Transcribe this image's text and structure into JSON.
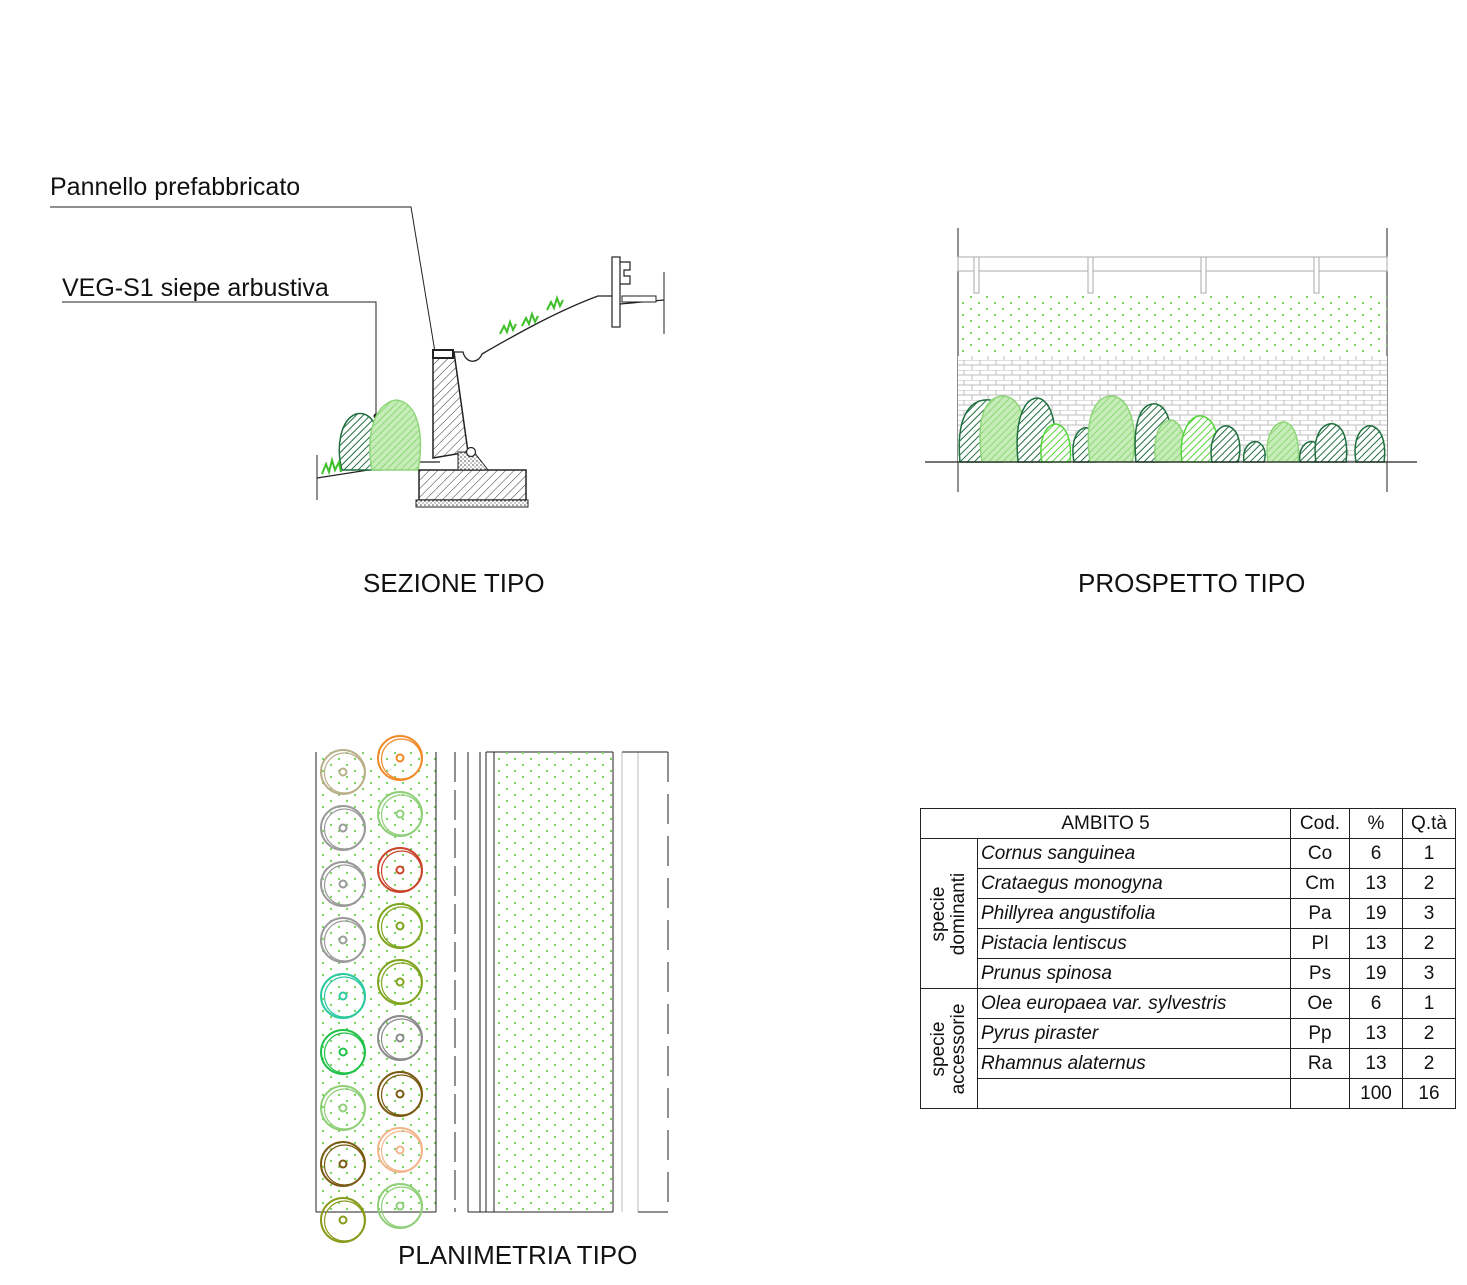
{
  "labels": {
    "pannello": "Pannello prefabbricato",
    "veg": "VEG-S1 siepe arbustiva"
  },
  "titles": {
    "sezione": "SEZIONE  TIPO",
    "prospetto": "PROSPETTO TIPO",
    "planimetria": "PLANIMETRIA TIPO"
  },
  "table": {
    "header": {
      "ambito": "AMBITO  5",
      "cod": "Cod.",
      "pct": "%",
      "qta": "Q.tà"
    },
    "groups": [
      {
        "label_line1": "specie",
        "label_line2": "dominanti",
        "rows": [
          {
            "name": "Cornus sanguinea",
            "cod": "Co",
            "pct": "6",
            "qta": "1"
          },
          {
            "name": "Crataegus monogyna",
            "cod": "Cm",
            "pct": "13",
            "qta": "2"
          },
          {
            "name": "Phillyrea angustifolia",
            "cod": "Pa",
            "pct": "19",
            "qta": "3"
          },
          {
            "name": "Pistacia lentiscus",
            "cod": "Pl",
            "pct": "13",
            "qta": "2"
          },
          {
            "name": "Prunus spinosa",
            "cod": "Ps",
            "pct": "19",
            "qta": "3"
          }
        ]
      },
      {
        "label_line1": "specie",
        "label_line2": "accessorie",
        "rows": [
          {
            "name": "Olea europaea var. sylvestris",
            "cod": "Oe",
            "pct": "6",
            "qta": "1"
          },
          {
            "name": "Pyrus piraster",
            "cod": "Pp",
            "pct": "13",
            "qta": "2"
          },
          {
            "name": "Rhamnus alaternus",
            "cod": "Ra",
            "pct": "13",
            "qta": "2"
          }
        ]
      }
    ],
    "totals": {
      "pct": "100",
      "qta": "16"
    }
  },
  "colors": {
    "dark_green": "#1f6f3f",
    "light_green": "#8fd67a",
    "bright_green": "#55d63a",
    "grass": "#3fbf2a",
    "dots": "#7ed36a",
    "plan_circles": [
      "#b9b08a",
      "#f08a28",
      "#9a9a9a",
      "#8fcf78",
      "#9a9a9a",
      "#c8442a",
      "#9a9a9a",
      "#7fa41e",
      "#2bc9a0",
      "#7fa41e",
      "#21c24a",
      "#8a8a8a",
      "#8fcf78",
      "#7a5a12",
      "#7a5a12",
      "#f3b58a",
      "#8a9a1a",
      "#8fcf78"
    ]
  }
}
